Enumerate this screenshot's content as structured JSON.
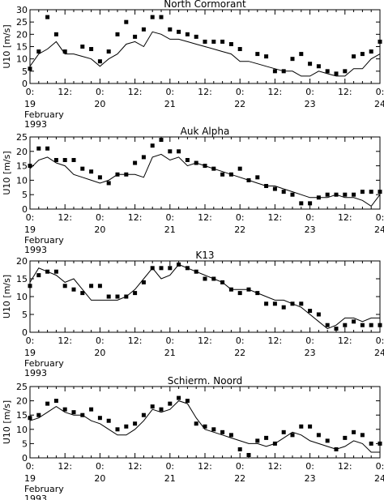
{
  "chart_data": [
    {
      "type": "line",
      "title": "North Cormorant",
      "ylabel": "U10 [m/s]",
      "ylim": [
        0,
        30
      ],
      "yticks": [
        0,
        5,
        10,
        15,
        20,
        25,
        30
      ],
      "xlim": [
        0,
        120
      ],
      "xticks": [
        {
          "x": 0,
          "top": "0:",
          "bottom": "19"
        },
        {
          "x": 12,
          "top": "12:",
          "bottom": ""
        },
        {
          "x": 24,
          "top": "0:",
          "bottom": "20"
        },
        {
          "x": 36,
          "top": "12:",
          "bottom": ""
        },
        {
          "x": 48,
          "top": "0:",
          "bottom": "21"
        },
        {
          "x": 60,
          "top": "12:",
          "bottom": ""
        },
        {
          "x": 72,
          "top": "0:",
          "bottom": "22"
        },
        {
          "x": 84,
          "top": "12:",
          "bottom": ""
        },
        {
          "x": 96,
          "top": "0:",
          "bottom": "23"
        },
        {
          "x": 108,
          "top": "12:",
          "bottom": ""
        },
        {
          "x": 120,
          "top": "0:",
          "bottom": "24"
        }
      ],
      "xnote": [
        "February",
        "1993"
      ],
      "series": [
        {
          "style": "line",
          "x": [
            0,
            3,
            6,
            9,
            12,
            15,
            18,
            21,
            24,
            27,
            30,
            33,
            36,
            39,
            42,
            45,
            48,
            51,
            54,
            57,
            60,
            63,
            66,
            69,
            72,
            75,
            78,
            81,
            84,
            87,
            90,
            93,
            96,
            99,
            102,
            105,
            108,
            111,
            114,
            117,
            120
          ],
          "y": [
            7,
            12,
            14,
            17,
            12,
            12,
            11,
            10,
            7,
            10,
            12,
            16,
            17,
            15,
            21,
            20,
            18,
            18,
            17,
            16,
            15,
            14,
            13,
            12,
            9,
            9,
            8,
            7,
            6,
            5,
            5,
            3,
            3,
            5,
            4,
            3,
            3,
            6,
            6,
            10,
            12
          ]
        },
        {
          "style": "markers",
          "x": [
            0,
            3,
            6,
            9,
            12,
            15,
            18,
            21,
            24,
            27,
            30,
            33,
            36,
            39,
            42,
            45,
            48,
            51,
            54,
            57,
            60,
            63,
            66,
            69,
            72,
            75,
            78,
            81,
            84,
            87,
            90,
            93,
            96,
            99,
            102,
            105,
            108,
            111,
            114,
            117,
            120
          ],
          "y": [
            6,
            13,
            27,
            20,
            13,
            null,
            15,
            14,
            9,
            13,
            20,
            25,
            19,
            22,
            27,
            27,
            22,
            21,
            20,
            19,
            17,
            17,
            17,
            16,
            14,
            null,
            12,
            11,
            5,
            5,
            10,
            12,
            8,
            7,
            5,
            4,
            5,
            11,
            12,
            13,
            17
          ]
        }
      ]
    },
    {
      "type": "line",
      "title": "Auk Alpha",
      "ylabel": "U10 [m/s]",
      "ylim": [
        0,
        25
      ],
      "yticks": [
        0,
        5,
        10,
        15,
        20,
        25
      ],
      "xlim": [
        0,
        120
      ],
      "xticks": [
        {
          "x": 0,
          "top": "0:",
          "bottom": "19"
        },
        {
          "x": 12,
          "top": "12:",
          "bottom": ""
        },
        {
          "x": 24,
          "top": "0:",
          "bottom": "20"
        },
        {
          "x": 36,
          "top": "12:",
          "bottom": ""
        },
        {
          "x": 48,
          "top": "0:",
          "bottom": "21"
        },
        {
          "x": 60,
          "top": "12:",
          "bottom": ""
        },
        {
          "x": 72,
          "top": "0:",
          "bottom": "22"
        },
        {
          "x": 84,
          "top": "12:",
          "bottom": ""
        },
        {
          "x": 96,
          "top": "0:",
          "bottom": "23"
        },
        {
          "x": 108,
          "top": "12:",
          "bottom": ""
        },
        {
          "x": 120,
          "top": "0:",
          "bottom": "24"
        }
      ],
      "xnote": [
        "February",
        "1993"
      ],
      "series": [
        {
          "style": "line",
          "x": [
            0,
            3,
            6,
            9,
            12,
            15,
            18,
            21,
            24,
            27,
            30,
            33,
            36,
            39,
            42,
            45,
            48,
            51,
            54,
            57,
            60,
            63,
            66,
            69,
            72,
            75,
            78,
            81,
            84,
            87,
            90,
            93,
            96,
            99,
            102,
            105,
            108,
            111,
            114,
            117,
            120
          ],
          "y": [
            14,
            17,
            18,
            16,
            15,
            12,
            11,
            10,
            9,
            10,
            12,
            12,
            12,
            11,
            18,
            19,
            17,
            18,
            15,
            16,
            15,
            14,
            13,
            12,
            11,
            10,
            9,
            8,
            8,
            7,
            6,
            5,
            4,
            4,
            4,
            5,
            4,
            4,
            3,
            1,
            5
          ]
        },
        {
          "style": "markers",
          "x": [
            0,
            3,
            6,
            9,
            12,
            15,
            18,
            21,
            24,
            27,
            30,
            33,
            36,
            39,
            42,
            45,
            48,
            51,
            54,
            57,
            60,
            63,
            66,
            69,
            72,
            75,
            78,
            81,
            84,
            87,
            90,
            93,
            96,
            99,
            102,
            105,
            108,
            111,
            114,
            117,
            120
          ],
          "y": [
            15,
            21,
            21,
            17,
            17,
            17,
            14,
            13,
            11,
            9,
            12,
            12,
            16,
            18,
            22,
            24,
            20,
            20,
            17,
            16,
            15,
            14,
            12,
            12,
            14,
            10,
            11,
            8,
            7,
            6,
            5,
            2,
            2,
            4,
            5,
            5,
            5,
            5,
            6,
            6,
            6
          ]
        }
      ]
    },
    {
      "type": "line",
      "title": "K13",
      "ylabel": "U10 [m/s]",
      "ylim": [
        0,
        20
      ],
      "yticks": [
        0,
        5,
        10,
        15,
        20
      ],
      "xlim": [
        0,
        120
      ],
      "xticks": [
        {
          "x": 0,
          "top": "0:",
          "bottom": "19"
        },
        {
          "x": 12,
          "top": "12:",
          "bottom": ""
        },
        {
          "x": 24,
          "top": "0:",
          "bottom": "20"
        },
        {
          "x": 36,
          "top": "12:",
          "bottom": ""
        },
        {
          "x": 48,
          "top": "0:",
          "bottom": "21"
        },
        {
          "x": 60,
          "top": "12:",
          "bottom": ""
        },
        {
          "x": 72,
          "top": "0:",
          "bottom": "22"
        },
        {
          "x": 84,
          "top": "12:",
          "bottom": ""
        },
        {
          "x": 96,
          "top": "0:",
          "bottom": "23"
        },
        {
          "x": 108,
          "top": "12:",
          "bottom": ""
        },
        {
          "x": 120,
          "top": "0:",
          "bottom": "24"
        }
      ],
      "xnote": [
        "February",
        "1993"
      ],
      "series": [
        {
          "style": "line",
          "x": [
            0,
            3,
            6,
            9,
            12,
            15,
            18,
            21,
            24,
            27,
            30,
            33,
            36,
            39,
            42,
            45,
            48,
            51,
            54,
            57,
            60,
            63,
            66,
            69,
            72,
            75,
            78,
            81,
            84,
            87,
            90,
            93,
            96,
            99,
            102,
            105,
            108,
            111,
            114,
            117,
            120
          ],
          "y": [
            14,
            18,
            17,
            16,
            14,
            15,
            12,
            9,
            9,
            9,
            9,
            10,
            12,
            15,
            18,
            15,
            16,
            19,
            18,
            17,
            16,
            15,
            14,
            12,
            12,
            12,
            11,
            10,
            9,
            9,
            8,
            7,
            5,
            3,
            1,
            2,
            4,
            4,
            3,
            4,
            4
          ]
        },
        {
          "style": "markers",
          "x": [
            0,
            3,
            6,
            9,
            12,
            15,
            18,
            21,
            24,
            27,
            30,
            33,
            36,
            39,
            42,
            45,
            48,
            51,
            54,
            57,
            60,
            63,
            66,
            69,
            72,
            75,
            78,
            81,
            84,
            87,
            90,
            93,
            96,
            99,
            102,
            105,
            108,
            111,
            114,
            117,
            120
          ],
          "y": [
            13,
            16,
            17,
            17,
            13,
            12,
            11,
            13,
            13,
            10,
            10,
            10,
            11,
            14,
            18,
            18,
            18,
            19,
            18,
            17,
            15,
            15,
            14,
            12,
            11,
            12,
            11,
            8,
            8,
            7,
            8,
            8,
            6,
            5,
            2,
            1,
            2,
            3,
            2,
            2,
            2
          ]
        }
      ]
    },
    {
      "type": "line",
      "title": "Schierm. Noord",
      "ylabel": "U10 [m/s]",
      "ylim": [
        0,
        25
      ],
      "yticks": [
        0,
        5,
        10,
        15,
        20,
        25
      ],
      "xlim": [
        0,
        120
      ],
      "xticks": [
        {
          "x": 0,
          "top": "0:",
          "bottom": "19"
        },
        {
          "x": 12,
          "top": "12:",
          "bottom": ""
        },
        {
          "x": 24,
          "top": "0:",
          "bottom": "20"
        },
        {
          "x": 36,
          "top": "12:",
          "bottom": ""
        },
        {
          "x": 48,
          "top": "0:",
          "bottom": "21"
        },
        {
          "x": 60,
          "top": "12:",
          "bottom": ""
        },
        {
          "x": 72,
          "top": "0:",
          "bottom": "22"
        },
        {
          "x": 84,
          "top": "12:",
          "bottom": ""
        },
        {
          "x": 96,
          "top": "0:",
          "bottom": "23"
        },
        {
          "x": 108,
          "top": "12:",
          "bottom": ""
        },
        {
          "x": 120,
          "top": "0:",
          "bottom": "24"
        }
      ],
      "xnote": [
        "February",
        "1993"
      ],
      "series": [
        {
          "style": "line",
          "x": [
            0,
            3,
            6,
            9,
            12,
            15,
            18,
            21,
            24,
            27,
            30,
            33,
            36,
            39,
            42,
            45,
            48,
            51,
            54,
            57,
            60,
            63,
            66,
            69,
            72,
            75,
            78,
            81,
            84,
            87,
            90,
            93,
            96,
            99,
            102,
            105,
            108,
            111,
            114,
            117,
            120
          ],
          "y": [
            13,
            14,
            16,
            18,
            16,
            15,
            15,
            13,
            12,
            10,
            8,
            8,
            10,
            13,
            17,
            16,
            17,
            20,
            19,
            14,
            10,
            9,
            8,
            7,
            6,
            5,
            5,
            4,
            5,
            7,
            9,
            8,
            6,
            5,
            4,
            3,
            4,
            6,
            5,
            2,
            2
          ]
        },
        {
          "style": "markers",
          "x": [
            0,
            3,
            6,
            9,
            12,
            15,
            18,
            21,
            24,
            27,
            30,
            33,
            36,
            39,
            42,
            45,
            48,
            51,
            54,
            57,
            60,
            63,
            66,
            69,
            72,
            75,
            78,
            81,
            84,
            87,
            90,
            93,
            96,
            99,
            102,
            105,
            108,
            111,
            114,
            117,
            120
          ],
          "y": [
            14,
            15,
            19,
            20,
            17,
            16,
            15,
            17,
            14,
            13,
            10,
            11,
            12,
            15,
            18,
            17,
            19,
            21,
            20,
            12,
            11,
            10,
            9,
            8,
            3,
            1,
            6,
            7,
            5,
            9,
            8,
            11,
            11,
            8,
            6,
            3,
            7,
            9,
            8,
            5,
            5
          ]
        }
      ]
    }
  ]
}
